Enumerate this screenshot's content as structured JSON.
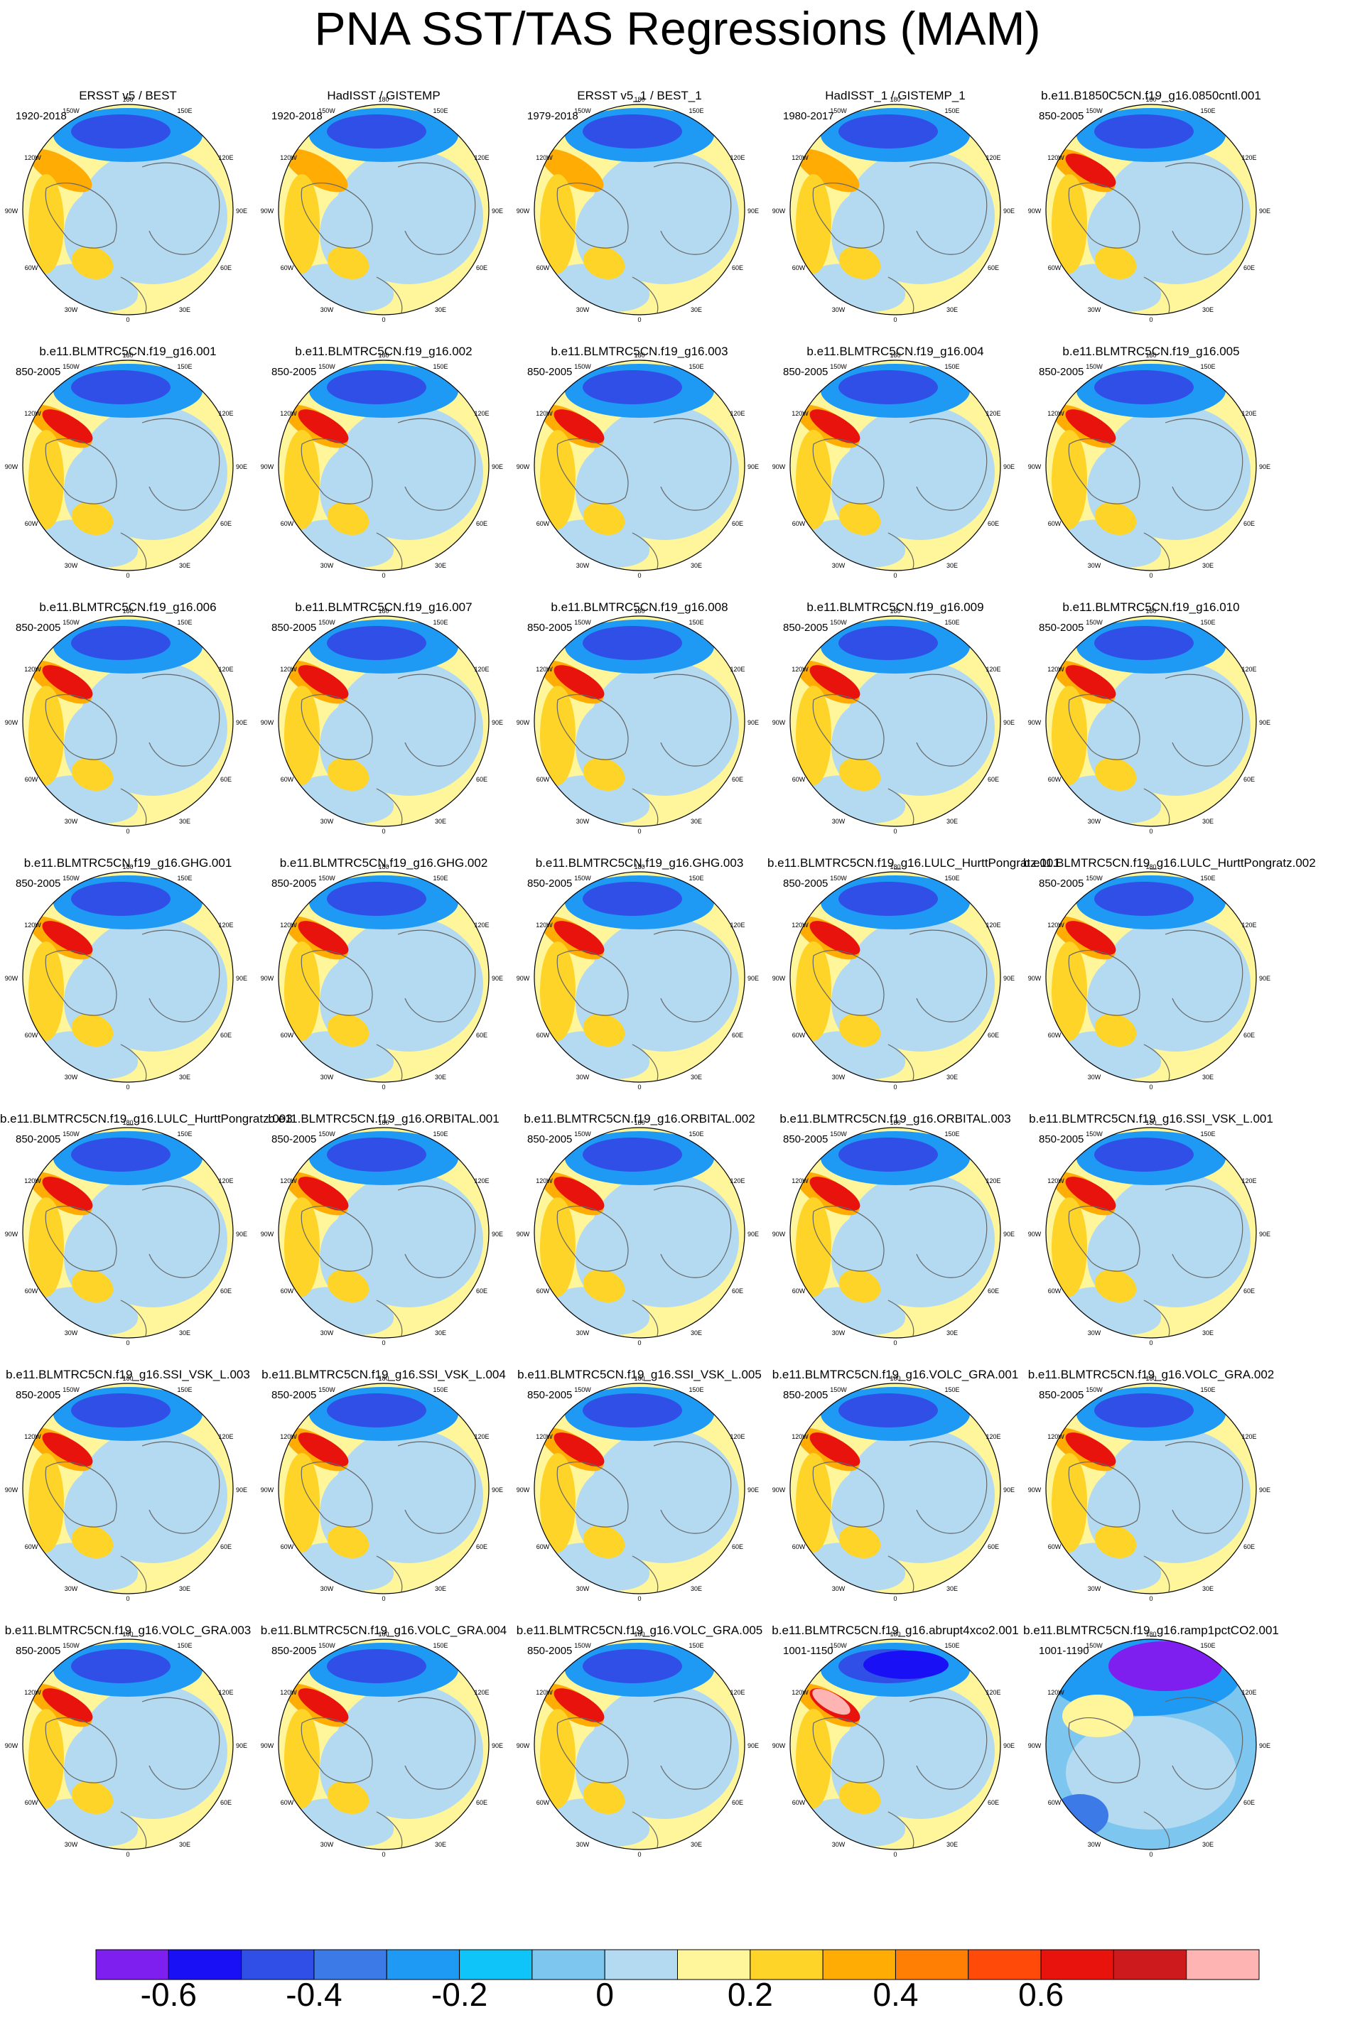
{
  "title": "PNA SST/TAS Regressions (MAM)",
  "chart_data": {
    "type": "polar-stereographic-maps",
    "projection": "North polar stereographic",
    "variable": "SST/TAS regression on PNA index",
    "season": "MAM",
    "colorbar": {
      "colors": [
        "#7e1ff0",
        "#1a10f5",
        "#2f4fe6",
        "#3c7ae8",
        "#1e9af5",
        "#0ec4f8",
        "#7cc6ef",
        "#b3daf1",
        "#fff59a",
        "#ffd428",
        "#ffac05",
        "#ff7f05",
        "#ff4a0a",
        "#e8130d",
        "#cc1a1d",
        "#ffb4b4"
      ],
      "ticks": [
        "-0.6",
        "-0.4",
        "-0.2",
        "0",
        "0.2",
        "0.4",
        "0.6"
      ],
      "tick_values": [
        -0.6,
        -0.4,
        -0.2,
        0,
        0.2,
        0.4,
        0.6
      ]
    },
    "map_labels": [
      "180",
      "150W",
      "150E",
      "120W",
      "120E",
      "90W",
      "90E",
      "60W",
      "60E",
      "30W",
      "30E",
      "0"
    ],
    "panels": [
      {
        "title": "ERSST v5 / BEST",
        "years": "1920-2018",
        "pattern": 1
      },
      {
        "title": "HadISST / GISTEMP",
        "years": "1920-2018",
        "pattern": 1
      },
      {
        "title": "ERSST v5_1 / BEST_1",
        "years": "1979-2018",
        "pattern": 1
      },
      {
        "title": "HadISST_1 / GISTEMP_1",
        "years": "1980-2017",
        "pattern": 1
      },
      {
        "title": "b.e11.B1850C5CN.f19_g16.0850cntl.001",
        "years": "850-2005",
        "pattern": 2
      },
      {
        "title": "b.e11.BLMTRC5CN.f19_g16.001",
        "years": "850-2005",
        "pattern": 2
      },
      {
        "title": "b.e11.BLMTRC5CN.f19_g16.002",
        "years": "850-2005",
        "pattern": 2
      },
      {
        "title": "b.e11.BLMTRC5CN.f19_g16.003",
        "years": "850-2005",
        "pattern": 2
      },
      {
        "title": "b.e11.BLMTRC5CN.f19_g16.004",
        "years": "850-2005",
        "pattern": 2
      },
      {
        "title": "b.e11.BLMTRC5CN.f19_g16.005",
        "years": "850-2005",
        "pattern": 2
      },
      {
        "title": "b.e11.BLMTRC5CN.f19_g16.006",
        "years": "850-2005",
        "pattern": 2
      },
      {
        "title": "b.e11.BLMTRC5CN.f19_g16.007",
        "years": "850-2005",
        "pattern": 2
      },
      {
        "title": "b.e11.BLMTRC5CN.f19_g16.008",
        "years": "850-2005",
        "pattern": 2
      },
      {
        "title": "b.e11.BLMTRC5CN.f19_g16.009",
        "years": "850-2005",
        "pattern": 2
      },
      {
        "title": "b.e11.BLMTRC5CN.f19_g16.010",
        "years": "850-2005",
        "pattern": 2
      },
      {
        "title": "b.e11.BLMTRC5CN.f19_g16.GHG.001",
        "years": "850-2005",
        "pattern": 2
      },
      {
        "title": "b.e11.BLMTRC5CN.f19_g16.GHG.002",
        "years": "850-2005",
        "pattern": 2
      },
      {
        "title": "b.e11.BLMTRC5CN.f19_g16.GHG.003",
        "years": "850-2005",
        "pattern": 2
      },
      {
        "title": "b.e11.BLMTRC5CN.f19_g16.LULC_HurttPongratz.001",
        "years": "850-2005",
        "pattern": 2
      },
      {
        "title": "b.e11.BLMTRC5CN.f19_g16.LULC_HurttPongratz.002",
        "years": "850-2005",
        "pattern": 2
      },
      {
        "title": "b.e11.BLMTRC5CN.f19_g16.LULC_HurttPongratz.003",
        "years": "850-2005",
        "pattern": 2
      },
      {
        "title": "b.e11.BLMTRC5CN.f19_g16.ORBITAL.001",
        "years": "850-2005",
        "pattern": 2
      },
      {
        "title": "b.e11.BLMTRC5CN.f19_g16.ORBITAL.002",
        "years": "850-2005",
        "pattern": 2
      },
      {
        "title": "b.e11.BLMTRC5CN.f19_g16.ORBITAL.003",
        "years": "850-2005",
        "pattern": 2
      },
      {
        "title": "b.e11.BLMTRC5CN.f19_g16.SSI_VSK_L.001",
        "years": "850-2005",
        "pattern": 2
      },
      {
        "title": "b.e11.BLMTRC5CN.f19_g16.SSI_VSK_L.003",
        "years": "850-2005",
        "pattern": 2
      },
      {
        "title": "b.e11.BLMTRC5CN.f19_g16.SSI_VSK_L.004",
        "years": "850-2005",
        "pattern": 2
      },
      {
        "title": "b.e11.BLMTRC5CN.f19_g16.SSI_VSK_L.005",
        "years": "850-2005",
        "pattern": 2
      },
      {
        "title": "b.e11.BLMTRC5CN.f19_g16.VOLC_GRA.001",
        "years": "850-2005",
        "pattern": 2
      },
      {
        "title": "b.e11.BLMTRC5CN.f19_g16.VOLC_GRA.002",
        "years": "850-2005",
        "pattern": 2
      },
      {
        "title": "b.e11.BLMTRC5CN.f19_g16.VOLC_GRA.003",
        "years": "850-2005",
        "pattern": 2
      },
      {
        "title": "b.e11.BLMTRC5CN.f19_g16.VOLC_GRA.004",
        "years": "850-2005",
        "pattern": 2
      },
      {
        "title": "b.e11.BLMTRC5CN.f19_g16.VOLC_GRA.005",
        "years": "850-2005",
        "pattern": 2
      },
      {
        "title": "b.e11.BLMTRC5CN.f19_g16.abrupt4xco2.001",
        "years": "1001-1150",
        "pattern": 3
      },
      {
        "title": "b.e11.BLMTRC5CN.f19_g16.ramp1pctCO2.001",
        "years": "1001-1190",
        "pattern": 4
      }
    ]
  }
}
